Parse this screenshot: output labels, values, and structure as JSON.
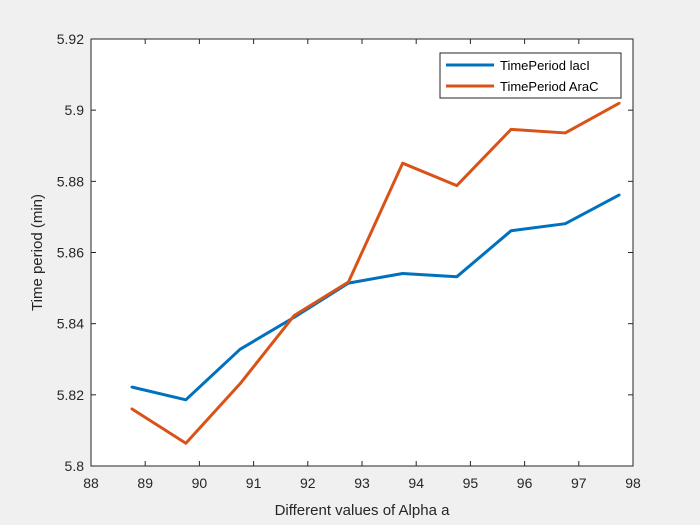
{
  "chart_data": {
    "type": "line",
    "title": "",
    "xlabel": "Different values of Alpha a",
    "ylabel": "Time period (min)",
    "xlim": [
      88,
      98
    ],
    "ylim": [
      5.8,
      5.92
    ],
    "xticks": [
      88,
      89,
      90,
      91,
      92,
      93,
      94,
      95,
      96,
      97,
      98
    ],
    "xtick_labels": [
      "88",
      "89",
      "90",
      "91",
      "92",
      "93",
      "94",
      "95",
      "96",
      "97",
      "98"
    ],
    "yticks": [
      5.8,
      5.82,
      5.84,
      5.86,
      5.88,
      5.9,
      5.92
    ],
    "ytick_labels": [
      "5.8",
      "5.82",
      "5.84",
      "5.86",
      "5.88",
      "5.9",
      "5.92"
    ],
    "grid": false,
    "legend_position": "top-right",
    "x": [
      88.75,
      89.75,
      90.75,
      91.75,
      92.75,
      93.75,
      94.75,
      95.75,
      96.75,
      97.75
    ],
    "series": [
      {
        "name": "TimePeriod lacI",
        "color": "#0072BD",
        "values": [
          5.8222,
          5.8186,
          5.8328,
          5.8418,
          5.8514,
          5.8541,
          5.8532,
          5.8661,
          5.8681,
          5.8762
        ]
      },
      {
        "name": "TimePeriod AraC",
        "color": "#D95319",
        "values": [
          5.8161,
          5.8064,
          5.8231,
          5.8423,
          5.8517,
          5.8851,
          5.8788,
          5.8946,
          5.8936,
          5.902
        ]
      }
    ]
  }
}
